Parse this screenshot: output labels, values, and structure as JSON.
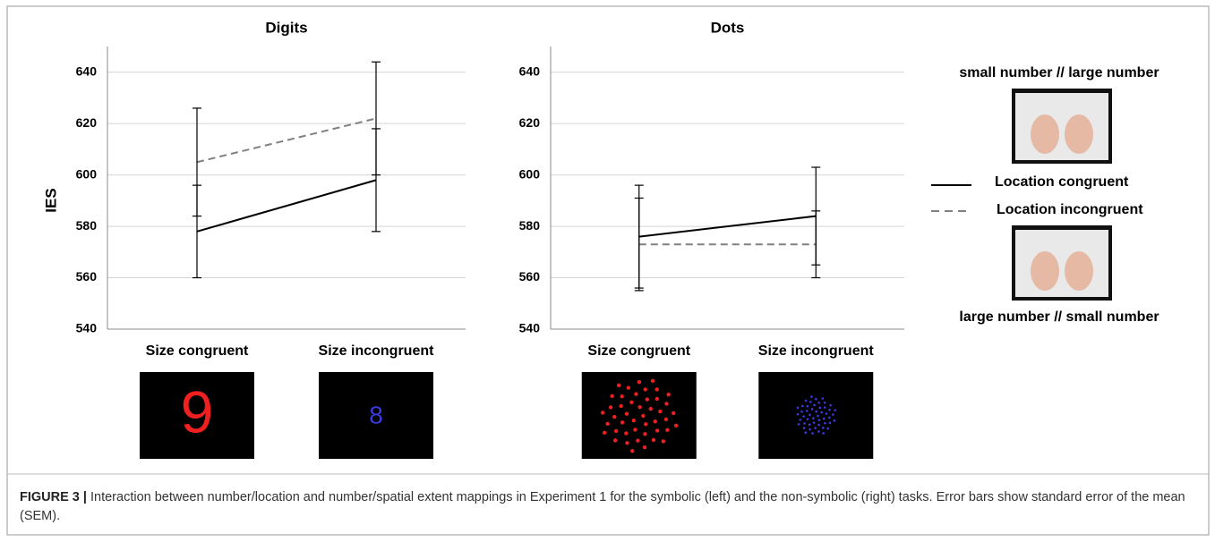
{
  "chart_data": [
    {
      "type": "line",
      "title": "Digits",
      "ylabel": "IES",
      "categories": [
        "Size congruent",
        "Size incongruent"
      ],
      "stimuli": [
        "9",
        "8"
      ],
      "series": [
        {
          "name": "Location congruent",
          "color": "#000000",
          "line_style": "solid",
          "values": [
            578,
            598
          ],
          "errors": [
            18,
            20
          ]
        },
        {
          "name": "Location incongruent",
          "color": "#808080",
          "line_style": "dashed",
          "values": [
            605,
            622
          ],
          "errors": [
            21,
            22
          ]
        }
      ],
      "ylim": [
        540,
        650
      ],
      "yticks": [
        540,
        560,
        580,
        600,
        620,
        640
      ],
      "grid": true
    },
    {
      "type": "line",
      "title": "Dots",
      "categories": [
        "Size congruent",
        "Size incongruent"
      ],
      "series": [
        {
          "color": "#000000",
          "line_style": "solid",
          "values": [
            576,
            584
          ],
          "errors": [
            20,
            19
          ]
        },
        {
          "color": "#808080",
          "line_style": "dashed",
          "values": [
            573,
            573
          ],
          "errors": [
            18,
            13
          ]
        }
      ],
      "ylim": [
        540,
        650
      ],
      "yticks": [
        540,
        560,
        580,
        600,
        620,
        640
      ],
      "grid": true
    }
  ],
  "legend": {
    "top_label": "small number // large number",
    "bottom_label": "large number // small number"
  },
  "caption": {
    "label": "FIGURE 3 |",
    "text": "Interaction between number/location and number/spatial extent mappings in Experiment 1 for the symbolic (left) and the non-symbolic (right) tasks. Error bars show standard error of the mean (SEM)."
  }
}
